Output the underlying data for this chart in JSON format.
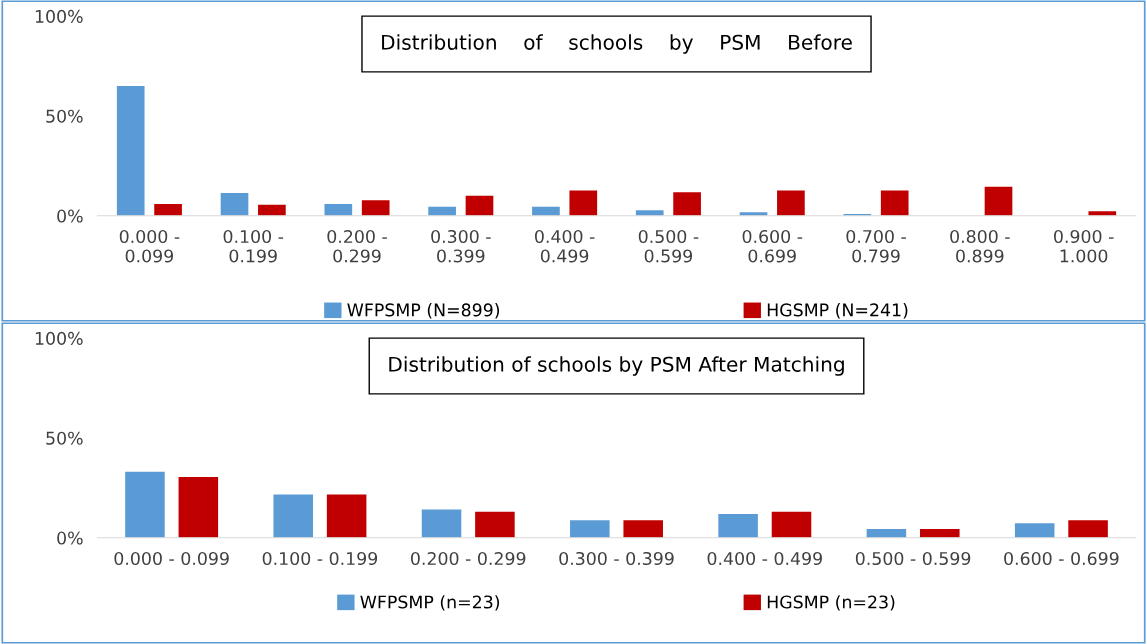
{
  "chart_data": [
    {
      "type": "bar",
      "title": "Distribution    of    schools    by    PSM    Before",
      "categories": [
        "0.000 - 0.099",
        "0.100 - 0.199",
        "0.200 - 0.299",
        "0.300 - 0.399",
        "0.400 - 0.499",
        "0.500 - 0.599",
        "0.600 - 0.699",
        "0.700 - 0.799",
        "0.800 - 0.899",
        "0.900 - 1.000"
      ],
      "series": [
        {
          "name": "WFPSMP (N=899)",
          "color": "#5b9bd5",
          "values": [
            65,
            11.4,
            5.9,
            4.5,
            4.5,
            2.7,
            1.8,
            0.9,
            null,
            null
          ]
        },
        {
          "name": "HGSMP (N=241)",
          "color": "#c00000",
          "values": [
            5.9,
            5.5,
            7.7,
            10,
            12.7,
            11.8,
            12.7,
            12.7,
            14.5,
            2.3
          ]
        }
      ],
      "ylim": [
        0,
        100
      ],
      "yticks": [
        {
          "value": 0,
          "label": "0%"
        },
        {
          "value": 50,
          "label": "50%"
        },
        {
          "value": 100,
          "label": "100%"
        }
      ],
      "grid": false,
      "legend": "bottom"
    },
    {
      "type": "bar",
      "title": "Distribution of schools by PSM After Matching",
      "categories": [
        "0.000 - 0.099",
        "0.100 - 0.199",
        "0.200 - 0.299",
        "0.300 - 0.399",
        "0.400 - 0.499",
        "0.500 - 0.599",
        "0.600 - 0.699"
      ],
      "series": [
        {
          "name": "WFPSMP (n=23)",
          "color": "#5b9bd5",
          "values": [
            33,
            21.7,
            14.2,
            8.7,
            11.9,
            4.4,
            7.3
          ]
        },
        {
          "name": "HGSMP (n=23)",
          "color": "#c00000",
          "values": [
            30.4,
            21.7,
            13,
            8.7,
            13,
            4.4,
            8.7
          ]
        }
      ],
      "ylim": [
        0,
        100
      ],
      "yticks": [
        {
          "value": 0,
          "label": "0%"
        },
        {
          "value": 50,
          "label": "50%"
        },
        {
          "value": 100,
          "label": "100%"
        }
      ],
      "grid": false,
      "legend": "bottom"
    }
  ]
}
